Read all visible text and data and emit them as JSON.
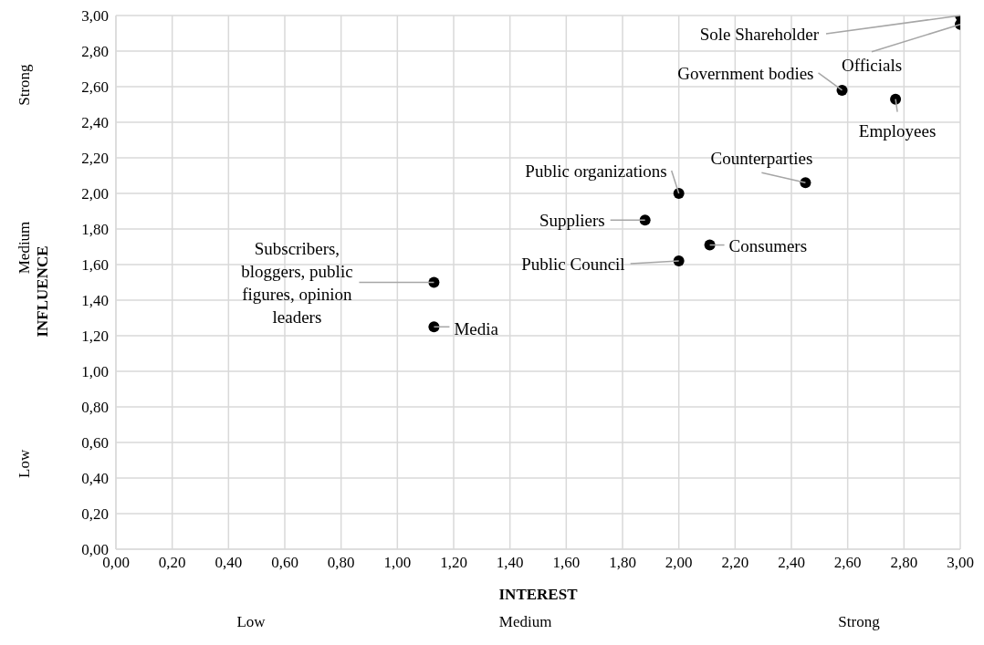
{
  "chart_data": {
    "type": "scatter",
    "xlabel": "INTEREST",
    "ylabel": "INFLUENCE",
    "x": [
      3.0,
      3.0,
      2.58,
      2.77,
      2.45,
      2.0,
      1.88,
      2.11,
      2.0,
      1.13,
      1.13
    ],
    "values": [
      3.0,
      2.95,
      2.58,
      2.53,
      2.06,
      2.0,
      1.85,
      1.71,
      1.62,
      1.5,
      1.25
    ],
    "color": "#000000",
    "marker": "circle",
    "grid": true,
    "xlim": [
      0,
      3
    ],
    "ylim": [
      0,
      3
    ],
    "xticks": [
      {
        "value": 0,
        "label": "0,00"
      },
      {
        "value": 0.2,
        "label": "0,20"
      },
      {
        "value": 0.4,
        "label": "0,40"
      },
      {
        "value": 0.6,
        "label": "0,60"
      },
      {
        "value": 0.8,
        "label": "0,80"
      },
      {
        "value": 1,
        "label": "1,00"
      },
      {
        "value": 1.2,
        "label": "1,20"
      },
      {
        "value": 1.4,
        "label": "1,40"
      },
      {
        "value": 1.6,
        "label": "1,60"
      },
      {
        "value": 1.8,
        "label": "1,80"
      },
      {
        "value": 2,
        "label": "2,00"
      },
      {
        "value": 2.2,
        "label": "2,20"
      },
      {
        "value": 2.4,
        "label": "2,40"
      },
      {
        "value": 2.6,
        "label": "2,60"
      },
      {
        "value": 2.8,
        "label": "2,80"
      },
      {
        "value": 3,
        "label": "3,00"
      }
    ],
    "yticks": [
      {
        "value": 0,
        "label": "0,00"
      },
      {
        "value": 0.2,
        "label": "0,20"
      },
      {
        "value": 0.4,
        "label": "0,40"
      },
      {
        "value": 0.6,
        "label": "0,60"
      },
      {
        "value": 0.8,
        "label": "0,80"
      },
      {
        "value": 1,
        "label": "1,00"
      },
      {
        "value": 1.2,
        "label": "1,20"
      },
      {
        "value": 1.4,
        "label": "1,40"
      },
      {
        "value": 1.6,
        "label": "1,60"
      },
      {
        "value": 1.8,
        "label": "1,80"
      },
      {
        "value": 2,
        "label": "2,00"
      },
      {
        "value": 2.2,
        "label": "2,20"
      },
      {
        "value": 2.4,
        "label": "2,40"
      },
      {
        "value": 2.6,
        "label": "2,60"
      },
      {
        "value": 2.8,
        "label": "2,80"
      },
      {
        "value": 3,
        "label": "3,00"
      }
    ],
    "annotations": [
      {
        "text": "Sole Shareholder",
        "x": 3.0,
        "y": 3.0
      },
      {
        "text": "Officials",
        "x": 3.0,
        "y": 2.95
      },
      {
        "text": "Government bodies",
        "x": 2.58,
        "y": 2.58
      },
      {
        "text": "Employees",
        "x": 2.77,
        "y": 2.53
      },
      {
        "text": "Counterparties",
        "x": 2.45,
        "y": 2.06
      },
      {
        "text": "Public organizations",
        "x": 2.0,
        "y": 2.0
      },
      {
        "text": "Suppliers",
        "x": 1.88,
        "y": 1.85
      },
      {
        "text": "Consumers",
        "x": 2.11,
        "y": 1.71
      },
      {
        "text": "Public Council",
        "x": 2.0,
        "y": 1.62
      },
      {
        "text": "Subscribers, bloggers, public figures, opinion leaders",
        "x": 1.13,
        "y": 1.5
      },
      {
        "text": "Media",
        "x": 1.13,
        "y": 1.25
      },
      "Low",
      "Medium",
      "Strong",
      "Low",
      "Medium",
      "Strong"
    ]
  }
}
